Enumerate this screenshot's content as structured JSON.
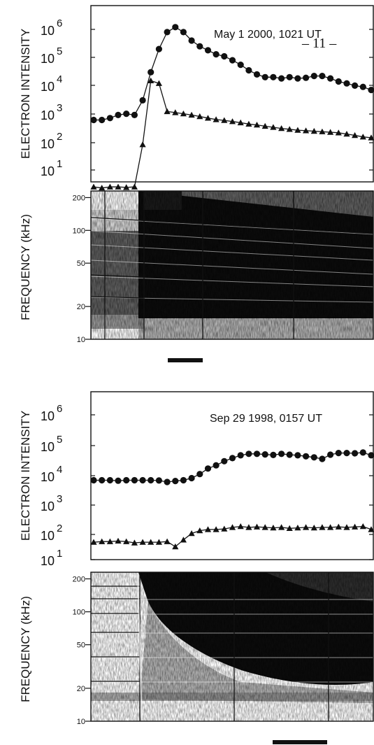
{
  "page_number": "– 11 –",
  "chart_data": [
    {
      "type": "line",
      "title": "May  1 2000, 1021 UT",
      "ylabel": "ELECTRON INTENSITY",
      "yscale": "log",
      "ylim": [
        1,
        1000000
      ],
      "y_tick_labels": [
        {
          "base": "10",
          "exp": "6"
        },
        {
          "base": "10",
          "exp": "5"
        },
        {
          "base": "10",
          "exp": "4"
        },
        {
          "base": "10",
          "exp": "3"
        },
        {
          "base": "10",
          "exp": "2"
        },
        {
          "base": "10",
          "exp": "1"
        }
      ],
      "series": [
        {
          "marker": "circle",
          "values": [
            600,
            600,
            700,
            900,
            1000,
            900,
            3000,
            30000,
            200000,
            800000,
            1200000,
            800000,
            400000,
            250000,
            180000,
            130000,
            110000,
            80000,
            55000,
            35000,
            25000,
            20000,
            20000,
            18000,
            20000,
            18000,
            19000,
            22000,
            22000,
            18000,
            14000,
            12000,
            10000,
            9000,
            7000
          ]
        },
        {
          "marker": "triangle",
          "values": [
            2.5,
            2.3,
            2.5,
            2.5,
            2.4,
            2.5,
            80,
            15000,
            12000,
            1200,
            1100,
            1000,
            900,
            800,
            700,
            620,
            580,
            530,
            480,
            430,
            400,
            360,
            330,
            300,
            280,
            260,
            250,
            240,
            230,
            220,
            210,
            190,
            170,
            150,
            140
          ]
        }
      ]
    },
    {
      "type": "heatmap",
      "ylabel": "FREQUENCY (kHz)",
      "yscale": "log",
      "ylim": [
        10,
        230
      ],
      "y_ticks": [
        200,
        100,
        50,
        20,
        10
      ],
      "y_tick_labels": [
        "200",
        "100",
        "50",
        "20",
        "10"
      ]
    },
    {
      "type": "line",
      "title": "Sep 29 1998, 0157 UT",
      "ylabel": "ELECTRON INTENSITY",
      "yscale": "log",
      "ylim": [
        1,
        1000000
      ],
      "y_tick_labels": [
        {
          "base": "10",
          "exp": "6"
        },
        {
          "base": "10",
          "exp": "5"
        },
        {
          "base": "10",
          "exp": "4"
        },
        {
          "base": "10",
          "exp": "3"
        },
        {
          "base": "10",
          "exp": "2"
        },
        {
          "base": "10",
          "exp": "1"
        }
      ],
      "series": [
        {
          "marker": "circle",
          "values": [
            5500,
            5500,
            5500,
            5300,
            5500,
            5500,
            5500,
            5500,
            5400,
            4800,
            5200,
            5500,
            6500,
            9000,
            14000,
            18000,
            25000,
            32000,
            40000,
            45000,
            45000,
            43000,
            41000,
            45000,
            42000,
            40000,
            37000,
            34000,
            30000,
            42000,
            48000,
            48000,
            47000,
            50000,
            40000
          ]
        },
        {
          "marker": "triangle",
          "values": [
            40,
            42,
            42,
            44,
            42,
            38,
            40,
            40,
            40,
            42,
            28,
            48,
            80,
            100,
            110,
            110,
            115,
            130,
            140,
            130,
            135,
            130,
            125,
            130,
            120,
            125,
            130,
            125,
            130,
            130,
            135,
            130,
            135,
            140,
            110
          ]
        }
      ]
    },
    {
      "type": "heatmap",
      "ylabel": "FREQUENCY (kHz)",
      "yscale": "log",
      "ylim": [
        10,
        230
      ],
      "y_ticks": [
        200,
        100,
        50,
        20,
        10
      ],
      "y_tick_labels": [
        "200",
        "100",
        "50",
        "20",
        "10"
      ]
    }
  ]
}
